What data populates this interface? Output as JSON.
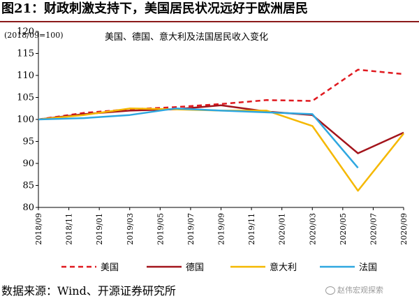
{
  "figure_title": "图21：财政刺激支持下，美国居民状况远好于欧洲居民",
  "unit_label": "(2018/09=100)",
  "source_text": "数据来源：Wind、开源证券研究所",
  "watermark": "赵伟宏观探索",
  "chart_data": {
    "type": "line",
    "title": "美国、德国、意大利及法国居民收入变化",
    "xlabel": "",
    "ylabel": "",
    "ylim": [
      80,
      120
    ],
    "yticks": [
      80,
      85,
      90,
      95,
      100,
      105,
      110,
      115,
      120
    ],
    "grid": false,
    "legend_position": "bottom",
    "x_tick_labels": [
      "2018/09",
      "2018/11",
      "2019/01",
      "2019/03",
      "2019/05",
      "2019/07",
      "2019/09",
      "2019/11",
      "2020/01",
      "2020/03",
      "2020/05",
      "2020/07",
      "2020/09"
    ],
    "x": [
      "2018/09",
      "2018/12",
      "2019/03",
      "2019/06",
      "2019/09",
      "2019/12",
      "2020/03",
      "2020/06",
      "2020/09"
    ],
    "series": [
      {
        "name": "美国",
        "color": "#e0191f",
        "dash": true,
        "values": [
          100,
          101.5,
          102.3,
          102.8,
          103.5,
          104.4,
          104.2,
          111.3,
          110.3
        ]
      },
      {
        "name": "德国",
        "color": "#a3141b",
        "dash": false,
        "values": [
          100,
          101.2,
          102.0,
          102.3,
          103.2,
          101.8,
          101.0,
          92.3,
          97.0
        ]
      },
      {
        "name": "意大利",
        "color": "#f5b800",
        "dash": false,
        "values": [
          100,
          101.0,
          102.5,
          102.3,
          102.0,
          102.0,
          98.5,
          83.8,
          96.8
        ]
      },
      {
        "name": "法国",
        "color": "#2ea7e0",
        "dash": false,
        "values": [
          100,
          100.3,
          101.0,
          102.5,
          102.0,
          101.6,
          101.2,
          89.0,
          null
        ]
      }
    ]
  }
}
